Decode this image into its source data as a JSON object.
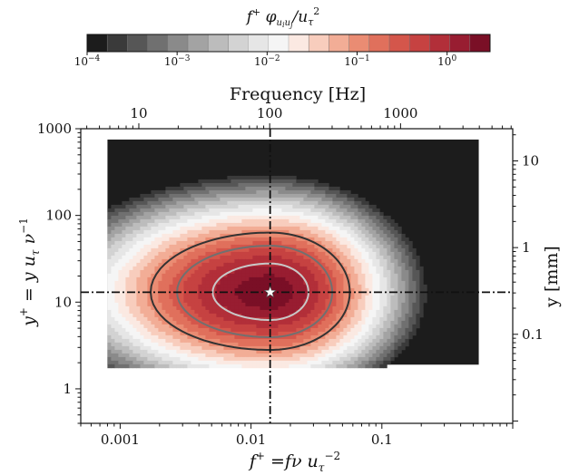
{
  "chart_data": {
    "type": "heatmap",
    "colorbar": {
      "label": "f⁺ φ_{u_i u_j}/u_τ²",
      "label_parts": {
        "lead": "f",
        "lead_sup": "+",
        "phi": " φ",
        "phi_sub": "u",
        "phi_sub2": "i",
        "phi_sub3": "u",
        "phi_sub4": "j",
        "slash": "/u",
        "tail_sub": "τ",
        "tail_sup": "2"
      },
      "scale": "log",
      "range": [
        0.0001,
        3
      ],
      "ticks": [
        {
          "value": 0.0001,
          "label": "10⁻⁴",
          "base": "10",
          "exp": "−4"
        },
        {
          "value": 0.001,
          "label": "10⁻³",
          "base": "10",
          "exp": "−3"
        },
        {
          "value": 0.01,
          "label": "10⁻²",
          "base": "10",
          "exp": "−2"
        },
        {
          "value": 0.1,
          "label": "10⁻¹",
          "base": "10",
          "exp": "−1"
        },
        {
          "value": 1,
          "label": "10⁰",
          "base": "10",
          "exp": "0"
        }
      ],
      "levels": 20,
      "colors": [
        "#1c1c1c",
        "#3a3a3a",
        "#565656",
        "#707070",
        "#8a8a8a",
        "#a3a3a3",
        "#bcbcbc",
        "#d3d3d3",
        "#e6e6e6",
        "#f5f5f5",
        "#fbe9e2",
        "#f8cdbd",
        "#f2ad96",
        "#ea8c73",
        "#e0705c",
        "#d4564b",
        "#c64241",
        "#b22f39",
        "#981d31",
        "#7a0f26"
      ]
    },
    "x_bottom": {
      "label": "f⁺ = fν u_τ⁻²",
      "label_parts": {
        "f": "f",
        "sup": "+",
        "eq": " =fν u",
        "sub": "τ",
        "exp": "−2"
      },
      "scale": "log",
      "range": [
        0.0005,
        1
      ],
      "ticks": [
        {
          "value": 0.001,
          "label": "0.001"
        },
        {
          "value": 0.01,
          "label": "0.01"
        },
        {
          "value": 0.1,
          "label": "0.1"
        }
      ]
    },
    "x_top": {
      "label": "Frequency [Hz]",
      "scale": "log",
      "ticks": [
        {
          "value": 10,
          "label": "10"
        },
        {
          "value": 100,
          "label": "100"
        },
        {
          "value": 1000,
          "label": "1000"
        }
      ]
    },
    "y_left": {
      "label": "y⁺ = y u_τ ν⁻¹",
      "label_parts": {
        "y": "y",
        "sup": "+",
        "eq": " = y u",
        "sub": "τ",
        "nu": " ν",
        "exp": "−1"
      },
      "scale": "log",
      "range": [
        0.4,
        1000
      ],
      "ticks": [
        {
          "value": 1,
          "label": "1"
        },
        {
          "value": 10,
          "label": "10"
        },
        {
          "value": 100,
          "label": "100"
        },
        {
          "value": 1000,
          "label": "1000"
        }
      ]
    },
    "y_right": {
      "label": "y [mm]",
      "scale": "log",
      "ticks": [
        {
          "value": 0.1,
          "label": "0.1"
        },
        {
          "value": 1,
          "label": "1"
        },
        {
          "value": 10,
          "label": "10"
        }
      ]
    },
    "data_extent": {
      "f_plus": [
        0.0008,
        0.55
      ],
      "y_plus": [
        1.9,
        750
      ]
    },
    "peak": {
      "f_plus": 0.014,
      "y_plus": 13,
      "marker": "star"
    },
    "reference_lines": [
      {
        "orientation": "vertical",
        "f_plus": 0.014,
        "style": "dash-dot"
      },
      {
        "orientation": "horizontal",
        "y_plus": 13,
        "style": "dash-dot"
      }
    ],
    "contour_lines": [
      {
        "level": 0.1,
        "color": "#333333"
      },
      {
        "level": 0.3,
        "color": "#707070"
      },
      {
        "level": 1.0,
        "color": "#c8c8c8"
      }
    ],
    "grid": false,
    "legend": "none"
  }
}
